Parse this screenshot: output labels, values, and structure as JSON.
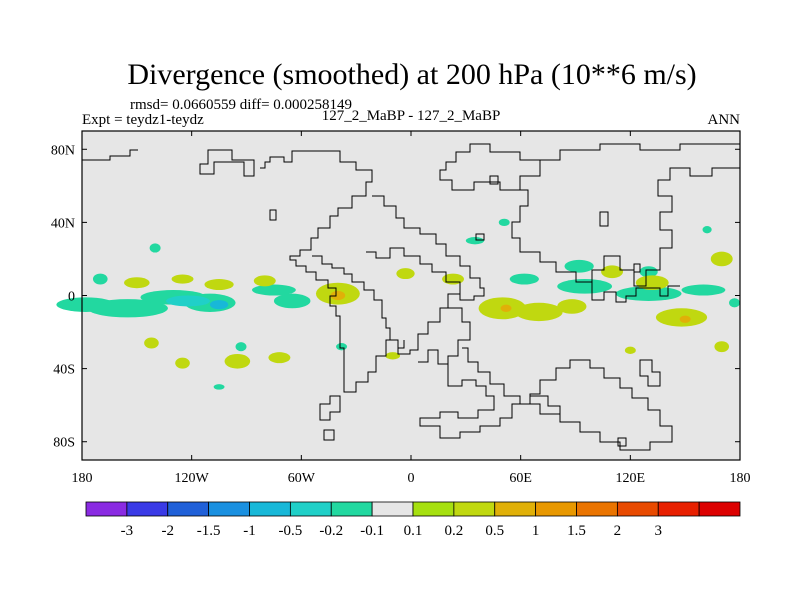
{
  "chart_data": {
    "type": "heatmap",
    "title": "Divergence (smoothed) at 200 hPa (10**6 m/s)",
    "stats": "rmsd= 0.0660559 diff= 0.000258149",
    "expt": "Expt = teydz1-teydz",
    "case": "127_2_MaBP - 127_2_MaBP",
    "season": "ANN",
    "xlim": [
      -180,
      180
    ],
    "ylim": [
      -90,
      90
    ],
    "xticks": [
      {
        "value": -180,
        "label": "180"
      },
      {
        "value": -120,
        "label": "120W"
      },
      {
        "value": -60,
        "label": "60W"
      },
      {
        "value": 0,
        "label": "0"
      },
      {
        "value": 60,
        "label": "60E"
      },
      {
        "value": 120,
        "label": "120E"
      },
      {
        "value": 180,
        "label": "180"
      }
    ],
    "yticks": [
      {
        "value": 80,
        "label": "80N"
      },
      {
        "value": 40,
        "label": "40N"
      },
      {
        "value": 0,
        "label": "0"
      },
      {
        "value": -40,
        "label": "40S"
      },
      {
        "value": -80,
        "label": "80S"
      }
    ],
    "colorbar": {
      "colors": [
        "#8a2be2",
        "#3a3ae6",
        "#2060d8",
        "#1a90e0",
        "#18b8d8",
        "#20d0c8",
        "#22d8a0",
        "#e6e6e6",
        "#a6e010",
        "#c0d810",
        "#e0b008",
        "#e89800",
        "#ea7400",
        "#e84a00",
        "#e82000",
        "#dc0000"
      ],
      "labels": [
        "-3",
        "-2",
        "-1.5",
        "-1",
        "-0.5",
        "-0.2",
        "-0.1",
        "0.1",
        "0.2",
        "0.5",
        "1",
        "1.5",
        "2",
        "3"
      ],
      "background": "#e6e6e6"
    },
    "blobs": [
      {
        "lon": -178,
        "lat": -5,
        "rlon": 16,
        "rlat": 4,
        "level": "-0.1"
      },
      {
        "lon": -155,
        "lat": -7,
        "rlon": 22,
        "rlat": 5,
        "level": "-0.1"
      },
      {
        "lon": -130,
        "lat": -1,
        "rlon": 18,
        "rlat": 4,
        "level": "-0.1"
      },
      {
        "lon": -110,
        "lat": -4,
        "rlon": 14,
        "rlat": 5,
        "level": "-0.1"
      },
      {
        "lon": -122,
        "lat": -3,
        "rlon": 12,
        "rlat": 3,
        "level": "-0.2"
      },
      {
        "lon": -105,
        "lat": -5,
        "rlon": 5,
        "rlat": 2.5,
        "level": "-0.5"
      },
      {
        "lon": -75,
        "lat": 3,
        "rlon": 12,
        "rlat": 3,
        "level": "-0.1"
      },
      {
        "lon": -65,
        "lat": -3,
        "rlon": 10,
        "rlat": 4,
        "level": "-0.1"
      },
      {
        "lon": -150,
        "lat": 7,
        "rlon": 7,
        "rlat": 3,
        "level": "0.1"
      },
      {
        "lon": -125,
        "lat": 9,
        "rlon": 6,
        "rlat": 2.5,
        "level": "0.1"
      },
      {
        "lon": -105,
        "lat": 6,
        "rlon": 8,
        "rlat": 3,
        "level": "0.1"
      },
      {
        "lon": -80,
        "lat": 8,
        "rlon": 6,
        "rlat": 3,
        "level": "0.1"
      },
      {
        "lon": -40,
        "lat": 1,
        "rlon": 12,
        "rlat": 6,
        "level": "0.1"
      },
      {
        "lon": -40,
        "lat": 0,
        "rlon": 4,
        "rlat": 2.5,
        "level": "0.2"
      },
      {
        "lon": -140,
        "lat": 26,
        "rlon": 3,
        "rlat": 2.5,
        "level": "-0.1"
      },
      {
        "lon": -170,
        "lat": 9,
        "rlon": 4,
        "rlat": 3,
        "level": "-0.1"
      },
      {
        "lon": -93,
        "lat": -28,
        "rlon": 3,
        "rlat": 2.5,
        "level": "-0.1"
      },
      {
        "lon": -142,
        "lat": -26,
        "rlon": 4,
        "rlat": 3,
        "level": "0.1"
      },
      {
        "lon": -125,
        "lat": -37,
        "rlon": 4,
        "rlat": 3,
        "level": "0.1"
      },
      {
        "lon": -95,
        "lat": -36,
        "rlon": 7,
        "rlat": 4,
        "level": "0.1"
      },
      {
        "lon": -72,
        "lat": -34,
        "rlon": 6,
        "rlat": 3,
        "level": "0.1"
      },
      {
        "lon": -105,
        "lat": -50,
        "rlon": 3,
        "rlat": 1.5,
        "level": "-0.1"
      },
      {
        "lon": -38,
        "lat": -28,
        "rlon": 3,
        "rlat": 2,
        "level": "-0.1"
      },
      {
        "lon": -10,
        "lat": -33,
        "rlon": 4,
        "rlat": 2,
        "level": "0.1"
      },
      {
        "lon": 23,
        "lat": 9,
        "rlon": 6,
        "rlat": 3,
        "level": "0.1"
      },
      {
        "lon": 35,
        "lat": 30,
        "rlon": 5,
        "rlat": 2,
        "level": "-0.1"
      },
      {
        "lon": 51,
        "lat": 40,
        "rlon": 3,
        "rlat": 2,
        "level": "-0.1"
      },
      {
        "lon": 92,
        "lat": 16,
        "rlon": 8,
        "rlat": 3.5,
        "level": "-0.1"
      },
      {
        "lon": 95,
        "lat": 5,
        "rlon": 15,
        "rlat": 4,
        "level": "-0.1"
      },
      {
        "lon": 130,
        "lat": 1,
        "rlon": 18,
        "rlat": 4,
        "level": "-0.1"
      },
      {
        "lon": 160,
        "lat": 3,
        "rlon": 12,
        "rlat": 3,
        "level": "-0.1"
      },
      {
        "lon": 62,
        "lat": 9,
        "rlon": 8,
        "rlat": 3,
        "level": "-0.1"
      },
      {
        "lon": 130,
        "lat": 13,
        "rlon": 5,
        "rlat": 3,
        "level": "-0.1"
      },
      {
        "lon": 170,
        "lat": 20,
        "rlon": 6,
        "rlat": 4,
        "level": "0.1"
      },
      {
        "lon": 162,
        "lat": 36,
        "rlon": 2.5,
        "rlat": 2,
        "level": "-0.1"
      },
      {
        "lon": -3,
        "lat": 12,
        "rlon": 5,
        "rlat": 3,
        "level": "0.1"
      },
      {
        "lon": 50,
        "lat": -7,
        "rlon": 13,
        "rlat": 6,
        "level": "0.1"
      },
      {
        "lon": 70,
        "lat": -9,
        "rlon": 13,
        "rlat": 5,
        "level": "0.1"
      },
      {
        "lon": 88,
        "lat": -6,
        "rlon": 8,
        "rlat": 4,
        "level": "0.1"
      },
      {
        "lon": 52,
        "lat": -7,
        "rlon": 3,
        "rlat": 2,
        "level": "0.2"
      },
      {
        "lon": 132,
        "lat": 7,
        "rlon": 9,
        "rlat": 4,
        "level": "0.1"
      },
      {
        "lon": 110,
        "lat": 13,
        "rlon": 6,
        "rlat": 3.5,
        "level": "0.1"
      },
      {
        "lon": 148,
        "lat": -12,
        "rlon": 14,
        "rlat": 5,
        "level": "0.1"
      },
      {
        "lon": 150,
        "lat": -13,
        "rlon": 3,
        "rlat": 2,
        "level": "0.2"
      },
      {
        "lon": 177,
        "lat": -4,
        "rlon": 3,
        "rlat": 2.5,
        "level": "-0.1"
      },
      {
        "lon": 120,
        "lat": -30,
        "rlon": 3,
        "rlat": 2,
        "level": "0.1"
      },
      {
        "lon": 170,
        "lat": -28,
        "rlon": 4,
        "rlat": 3,
        "level": "0.1"
      }
    ]
  }
}
